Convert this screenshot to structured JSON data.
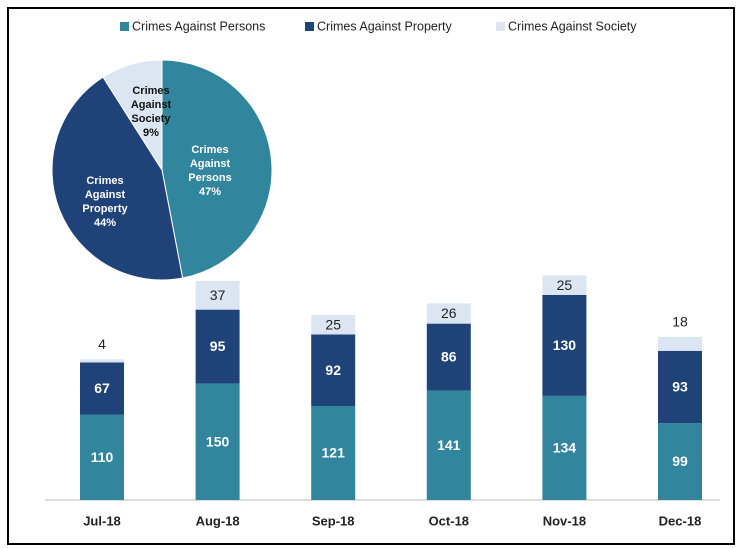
{
  "chart_data": [
    {
      "type": "bar",
      "categories": [
        "Jul-18",
        "Aug-18",
        "Sep-18",
        "Oct-18",
        "Nov-18",
        "Dec-18"
      ],
      "series": [
        {
          "name": "Crimes Against Persons",
          "color": "#31859c",
          "values": [
            110,
            150,
            121,
            141,
            134,
            99
          ]
        },
        {
          "name": "Crimes Against Property",
          "color": "#1f4278",
          "values": [
            67,
            95,
            92,
            86,
            130,
            93
          ]
        },
        {
          "name": "Crimes Against Society",
          "color": "#dce6f2",
          "values": [
            4,
            37,
            25,
            26,
            25,
            18
          ]
        }
      ],
      "stacked": true,
      "legend": "top"
    },
    {
      "type": "pie",
      "categories": [
        "Crimes Against Persons",
        "Crimes Against Property",
        "Crimes Against Society"
      ],
      "values": [
        47,
        44,
        9
      ],
      "value_labels": [
        "47%",
        "44%",
        "9%"
      ],
      "colors": [
        "#31859c",
        "#1f4278",
        "#dce6f2"
      ]
    }
  ]
}
